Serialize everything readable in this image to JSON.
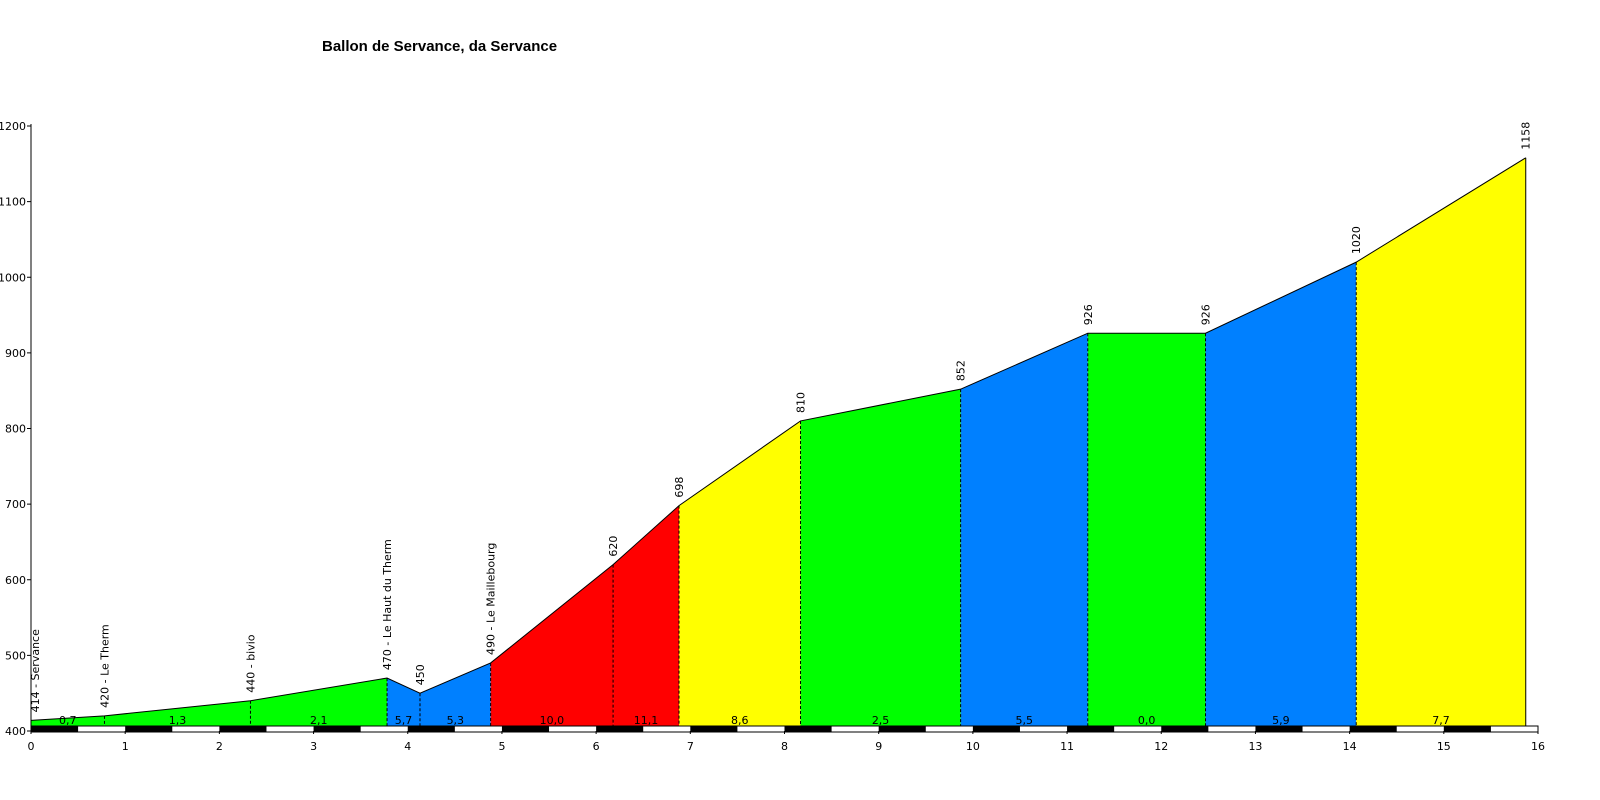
{
  "chart_data": {
    "type": "area",
    "title": "Ballon de Servance, da Servance",
    "xlabel": "",
    "ylabel": "",
    "xlim": [
      0,
      16
    ],
    "ylim": [
      400,
      1200
    ],
    "x_ticks": [
      "0",
      "1",
      "2",
      "3",
      "4",
      "5",
      "6",
      "7",
      "8",
      "9",
      "10",
      "11",
      "12",
      "13",
      "14",
      "15",
      "16"
    ],
    "y_ticks": [
      "400",
      "500",
      "600",
      "700",
      "800",
      "900",
      "1000",
      "1100",
      "1200"
    ],
    "profile_points": [
      {
        "x": 0,
        "y": 414,
        "label": "414 - Servance"
      },
      {
        "x": 0.78,
        "y": 420,
        "label": "420 - Le Therm"
      },
      {
        "x": 2.33,
        "y": 440,
        "label": "440 - bivio"
      },
      {
        "x": 3.78,
        "y": 470,
        "label": "470 - Le Haut du Therm"
      },
      {
        "x": 4.13,
        "y": 450,
        "label": "450"
      },
      {
        "x": 4.88,
        "y": 490,
        "label": "490 - Le Maillebourg"
      },
      {
        "x": 6.18,
        "y": 620,
        "label": "620"
      },
      {
        "x": 6.88,
        "y": 698,
        "label": "698"
      },
      {
        "x": 8.17,
        "y": 810,
        "label": "810"
      },
      {
        "x": 9.87,
        "y": 852,
        "label": "852"
      },
      {
        "x": 11.22,
        "y": 926,
        "label": "926"
      },
      {
        "x": 12.47,
        "y": 926,
        "label": "926"
      },
      {
        "x": 14.07,
        "y": 1020,
        "label": "1020"
      },
      {
        "x": 15.87,
        "y": 1158,
        "label": "1158"
      }
    ],
    "segments": [
      {
        "gradient": "0,7",
        "color": "#00ff00"
      },
      {
        "gradient": "1,3",
        "color": "#00ff00"
      },
      {
        "gradient": "2,1",
        "color": "#00ff00"
      },
      {
        "gradient": "5,7",
        "color": "#0080ff"
      },
      {
        "gradient": "5,3",
        "color": "#0080ff"
      },
      {
        "gradient": "10,0",
        "color": "#ff0000"
      },
      {
        "gradient": "11,1",
        "color": "#ff0000"
      },
      {
        "gradient": "8,6",
        "color": "#ffff00"
      },
      {
        "gradient": "2,5",
        "color": "#00ff00"
      },
      {
        "gradient": "5,5",
        "color": "#0080ff"
      },
      {
        "gradient": "0,0",
        "color": "#00ff00"
      },
      {
        "gradient": "5,9",
        "color": "#0080ff"
      },
      {
        "gradient": "7,7",
        "color": "#ffff00"
      }
    ],
    "grid": false,
    "legend": "none"
  }
}
